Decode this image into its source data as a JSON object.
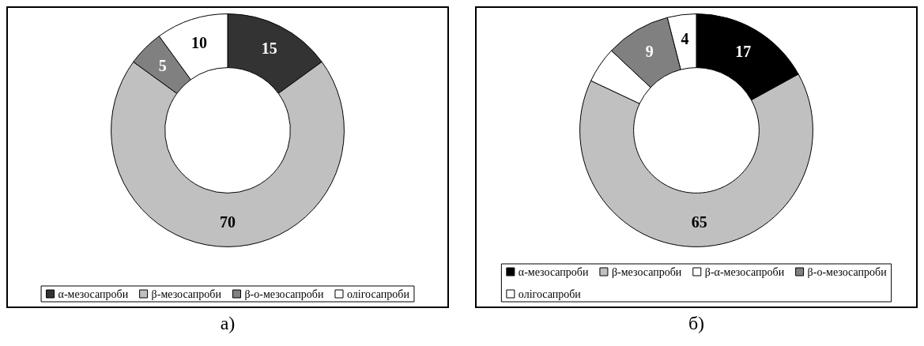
{
  "chart_data": [
    {
      "type": "donut",
      "categories": [
        "α-мезосапроби",
        "β-мезосапроби",
        "β-о-мезосапроби",
        "олігосапроби"
      ],
      "values": [
        15,
        70,
        5,
        10
      ],
      "colors": [
        "#333333",
        "#c0c0c0",
        "#808080",
        "#ffffff"
      ],
      "data_labels": true,
      "legend": "bottom",
      "annotations": [
        "а)"
      ]
    },
    {
      "type": "donut",
      "categories": [
        "α-мезосапроби",
        "β-мезосапроби",
        "β-α-мезосапроби",
        "β-о-мезосапроби",
        "олігосапроби"
      ],
      "values": [
        17,
        65,
        5,
        9,
        4
      ],
      "colors": [
        "#000000",
        "#c0c0c0",
        "#ffffff",
        "#808080",
        "#ffffff"
      ],
      "value_labels": [
        "17",
        "65",
        null,
        "9",
        "4"
      ],
      "legend": "bottom",
      "annotations": [
        "б)"
      ]
    }
  ]
}
